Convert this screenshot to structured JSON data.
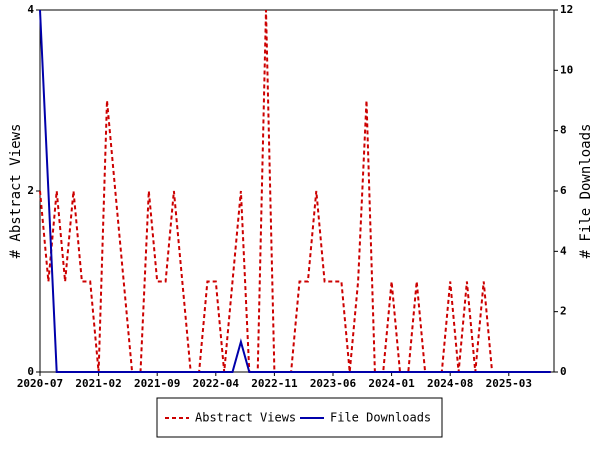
{
  "chart_data": {
    "type": "line",
    "categories": [
      "2020-07",
      null,
      null,
      null,
      null,
      null,
      null,
      "2021-02",
      null,
      null,
      null,
      null,
      null,
      null,
      "2021-09",
      null,
      null,
      null,
      null,
      null,
      null,
      "2022-04",
      null,
      null,
      null,
      null,
      null,
      null,
      "2022-11",
      null,
      null,
      null,
      null,
      null,
      null,
      "2023-06",
      null,
      null,
      null,
      null,
      null,
      null,
      "2024-01",
      null,
      null,
      null,
      null,
      null,
      null,
      "2024-08",
      null,
      null,
      null,
      null,
      null,
      null,
      "2025-03",
      null,
      null,
      null,
      null,
      null
    ],
    "ylabel": "# Abstract Views",
    "y2label": "# File Downloads",
    "ylim": [
      0,
      4
    ],
    "yticks": [
      0,
      2,
      4
    ],
    "y2lim": [
      0,
      12
    ],
    "y2ticks": [
      0,
      2,
      4,
      6,
      8,
      10,
      12
    ],
    "legend_position": "bottom",
    "series": [
      {
        "name": "Abstract Views",
        "color": "#cc0000",
        "dashed": true,
        "axis": "y",
        "values": [
          2,
          1,
          2,
          1,
          2,
          1,
          1,
          0,
          3,
          2,
          1,
          0,
          0,
          2,
          1,
          1,
          2,
          1,
          0,
          0,
          1,
          1,
          0,
          1,
          2,
          0,
          0,
          4,
          0,
          0,
          0,
          1,
          1,
          2,
          1,
          1,
          1,
          0,
          1,
          3,
          0,
          0,
          1,
          0,
          0,
          1,
          0,
          0,
          0,
          1,
          0,
          1,
          0,
          1,
          0,
          0,
          0,
          0,
          0,
          0,
          0,
          0
        ]
      },
      {
        "name": "File Downloads",
        "color": "#0000aa",
        "dashed": false,
        "axis": "y2",
        "values": [
          12,
          6,
          0,
          0,
          0,
          0,
          0,
          0,
          0,
          0,
          0,
          0,
          0,
          0,
          0,
          0,
          0,
          0,
          0,
          0,
          0,
          0,
          0,
          0,
          1,
          0,
          0,
          0,
          0,
          0,
          0,
          0,
          0,
          0,
          0,
          0,
          0,
          0,
          0,
          0,
          0,
          0,
          0,
          0,
          0,
          0,
          0,
          0,
          0,
          0,
          0,
          0,
          0,
          0,
          0,
          0,
          0,
          0,
          0,
          0,
          0,
          0
        ]
      }
    ]
  }
}
